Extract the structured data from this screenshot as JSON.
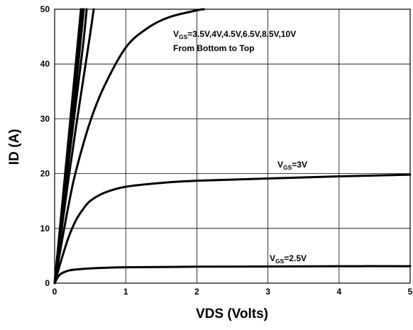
{
  "chart_data": {
    "type": "line",
    "xlabel": "VDS (Volts)",
    "ylabel": "ID (A)",
    "xlim": [
      0,
      5
    ],
    "ylim": [
      0,
      50
    ],
    "xticks": [
      "0",
      "1",
      "2",
      "3",
      "4",
      "5"
    ],
    "yticks": [
      "0",
      "10",
      "20",
      "30",
      "40",
      "50"
    ],
    "grid": true,
    "series": [
      {
        "vgs": 2.5,
        "x": [
          0,
          0.05,
          0.1,
          0.2,
          0.3,
          0.5,
          0.8,
          1,
          1.5,
          2,
          3,
          4,
          5
        ],
        "y": [
          0,
          1.2,
          1.8,
          2.3,
          2.5,
          2.7,
          2.85,
          2.9,
          2.95,
          3.0,
          3.05,
          3.1,
          3.1
        ]
      },
      {
        "vgs": 3,
        "x": [
          0,
          0.1,
          0.2,
          0.3,
          0.4,
          0.5,
          0.7,
          1,
          1.5,
          2,
          3,
          4,
          5
        ],
        "y": [
          0,
          4.5,
          8.5,
          11.5,
          13.5,
          15,
          16.5,
          17.6,
          18.3,
          18.7,
          19.1,
          19.5,
          19.8
        ]
      },
      {
        "vgs": 3.5,
        "x": [
          0,
          0.1,
          0.2,
          0.3,
          0.5,
          0.7,
          1,
          1.3,
          1.6,
          2,
          2.1
        ],
        "y": [
          0,
          7.5,
          14.5,
          20.5,
          29.5,
          36,
          43,
          46.5,
          48.5,
          49.8,
          50
        ]
      },
      {
        "vgs": 4,
        "x": [
          0,
          0.1,
          0.2,
          0.3,
          0.4,
          0.5,
          0.55
        ],
        "y": [
          0,
          10,
          19.5,
          28.5,
          37,
          45.5,
          50
        ]
      },
      {
        "vgs": 4.5,
        "x": [
          0,
          0.1,
          0.2,
          0.3,
          0.4,
          0.45
        ],
        "y": [
          0,
          11.5,
          22.5,
          33,
          43.5,
          50
        ]
      },
      {
        "vgs": 6.5,
        "x": [
          0,
          0.1,
          0.2,
          0.3,
          0.41
        ],
        "y": [
          0,
          12.5,
          24.5,
          36,
          50
        ]
      },
      {
        "vgs": 8.5,
        "x": [
          0,
          0.1,
          0.2,
          0.3,
          0.39
        ],
        "y": [
          0,
          13,
          25.5,
          38,
          50
        ]
      },
      {
        "vgs": 10,
        "x": [
          0,
          0.1,
          0.2,
          0.3,
          0.37
        ],
        "y": [
          0,
          13.5,
          27,
          40.5,
          50
        ]
      }
    ],
    "annotations": {
      "top_label": {
        "main": "V",
        "sub": "GS",
        "rest": "=3.5V,4V,4.5V,6.5V,8.5V,10V"
      },
      "top_label_line2": "From Bottom to Top",
      "label_3v": {
        "main": "V",
        "sub": "GS",
        "rest": "=3V"
      },
      "label_2_5v": {
        "main": "V",
        "sub": "GS",
        "rest": "=2.5V"
      }
    }
  }
}
